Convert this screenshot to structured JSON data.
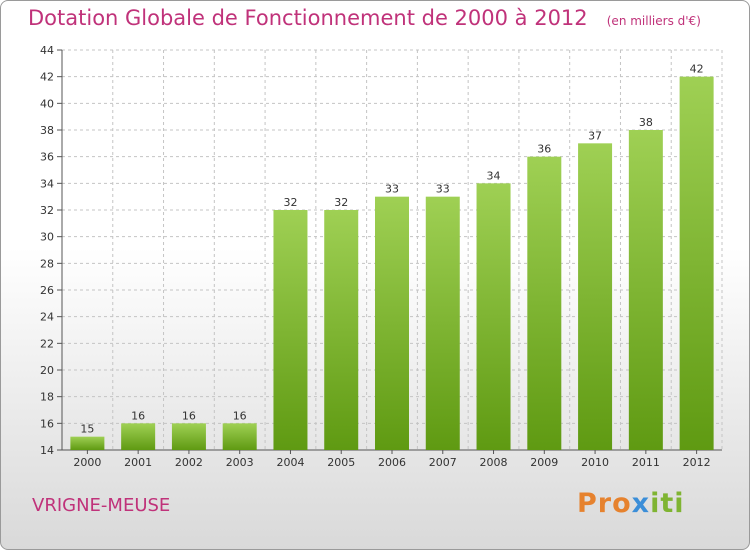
{
  "title": "Dotation Globale de Fonctionnement de 2000 à 2012",
  "subtitle": "(en milliers d'€)",
  "place": "VRIGNE-MEUSE",
  "logo": {
    "part1": "Pro",
    "part2": "x",
    "part3": "iti"
  },
  "colors": {
    "title": "#c0327a",
    "bar_light": "#9fd054",
    "bar_dark": "#5f9a12"
  },
  "chart_data": {
    "type": "bar",
    "title": "Dotation Globale de Fonctionnement de 2000 à 2012",
    "subtitle": "(en milliers d'€)",
    "xlabel": "",
    "ylabel": "",
    "categories": [
      "2000",
      "2001",
      "2002",
      "2003",
      "2004",
      "2005",
      "2006",
      "2007",
      "2008",
      "2009",
      "2010",
      "2011",
      "2012"
    ],
    "values": [
      15,
      16,
      16,
      16,
      32,
      32,
      33,
      33,
      34,
      36,
      37,
      38,
      42
    ],
    "ylim": [
      14,
      44
    ],
    "yticks": [
      14,
      16,
      18,
      20,
      22,
      24,
      26,
      28,
      30,
      32,
      34,
      36,
      38,
      40,
      42,
      44
    ],
    "grid": true
  }
}
